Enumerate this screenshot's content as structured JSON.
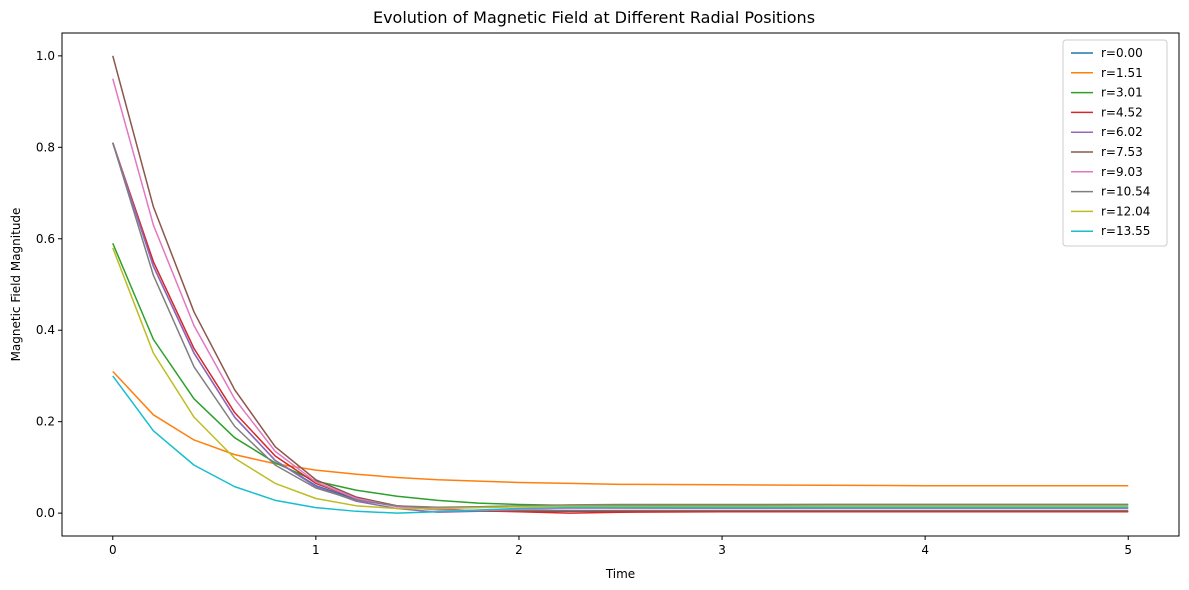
{
  "chart_data": {
    "type": "line",
    "title": "Evolution of Magnetic Field at Different Radial Positions",
    "xlabel": "Time",
    "ylabel": "Magnetic Field Magnitude",
    "xlim": [
      -0.25,
      5.25
    ],
    "ylim": [
      -0.05,
      1.05
    ],
    "xticks": [
      0,
      1,
      2,
      3,
      4,
      5
    ],
    "xtick_labels": [
      "0",
      "1",
      "2",
      "3",
      "4",
      "5"
    ],
    "yticks": [
      0.0,
      0.2,
      0.4,
      0.6,
      0.8,
      1.0
    ],
    "ytick_labels": [
      "0.0",
      "0.2",
      "0.4",
      "0.6",
      "0.8",
      "1.0"
    ],
    "grid": false,
    "legend_position": "top-right",
    "x": [
      0,
      0.2,
      0.4,
      0.6,
      0.8,
      1.0,
      1.2,
      1.4,
      1.6,
      1.8,
      2.0,
      2.25,
      2.5,
      3.0,
      3.5,
      4.0,
      4.5,
      5.0
    ],
    "series": [
      {
        "name": "r=0.00",
        "color": "#1f77b4",
        "values": [
          0.81,
          0.54,
          0.35,
          0.21,
          0.115,
          0.06,
          0.03,
          0.015,
          0.008,
          0.005,
          0.004,
          0.004,
          0.004,
          0.004,
          0.004,
          0.004,
          0.004,
          0.004
        ]
      },
      {
        "name": "r=1.51",
        "color": "#ff7f0e",
        "values": [
          0.31,
          0.215,
          0.16,
          0.128,
          0.108,
          0.094,
          0.085,
          0.078,
          0.073,
          0.07,
          0.067,
          0.065,
          0.063,
          0.062,
          0.061,
          0.06,
          0.06,
          0.06
        ]
      },
      {
        "name": "r=3.01",
        "color": "#2ca02c",
        "values": [
          0.59,
          0.38,
          0.25,
          0.165,
          0.11,
          0.07,
          0.05,
          0.037,
          0.028,
          0.022,
          0.019,
          0.017,
          0.017,
          0.018,
          0.019,
          0.019,
          0.019,
          0.019
        ]
      },
      {
        "name": "r=4.52",
        "color": "#d62728",
        "values": [
          0.81,
          0.55,
          0.36,
          0.22,
          0.125,
          0.065,
          0.032,
          0.016,
          0.009,
          0.005,
          0.003,
          0.0,
          0.002,
          0.003,
          0.003,
          0.003,
          0.003,
          0.003
        ]
      },
      {
        "name": "r=6.02",
        "color": "#9467bd",
        "values": [
          0.81,
          0.54,
          0.35,
          0.21,
          0.115,
          0.058,
          0.026,
          0.01,
          0.002,
          0.004,
          0.008,
          0.01,
          0.01,
          0.01,
          0.01,
          0.01,
          0.01,
          0.01
        ]
      },
      {
        "name": "r=7.53",
        "color": "#8c564b",
        "values": [
          1.0,
          0.67,
          0.44,
          0.27,
          0.145,
          0.073,
          0.035,
          0.016,
          0.008,
          0.005,
          0.005,
          0.005,
          0.005,
          0.005,
          0.005,
          0.005,
          0.005,
          0.005
        ]
      },
      {
        "name": "r=9.03",
        "color": "#e377c2",
        "values": [
          0.95,
          0.63,
          0.41,
          0.25,
          0.135,
          0.068,
          0.032,
          0.014,
          0.007,
          0.006,
          0.008,
          0.01,
          0.011,
          0.012,
          0.012,
          0.012,
          0.012,
          0.012
        ]
      },
      {
        "name": "r=10.54",
        "color": "#7f7f7f",
        "values": [
          0.81,
          0.52,
          0.32,
          0.19,
          0.105,
          0.055,
          0.028,
          0.016,
          0.013,
          0.014,
          0.016,
          0.018,
          0.019,
          0.019,
          0.019,
          0.019,
          0.019,
          0.019
        ]
      },
      {
        "name": "r=12.04",
        "color": "#bcbd22",
        "values": [
          0.58,
          0.35,
          0.21,
          0.12,
          0.065,
          0.032,
          0.016,
          0.01,
          0.01,
          0.012,
          0.014,
          0.015,
          0.015,
          0.015,
          0.015,
          0.015,
          0.015,
          0.015
        ]
      },
      {
        "name": "r=13.55",
        "color": "#17becf",
        "values": [
          0.3,
          0.18,
          0.105,
          0.058,
          0.028,
          0.012,
          0.004,
          0.0,
          0.003,
          0.007,
          0.01,
          0.012,
          0.012,
          0.012,
          0.012,
          0.012,
          0.012,
          0.012
        ]
      }
    ]
  }
}
